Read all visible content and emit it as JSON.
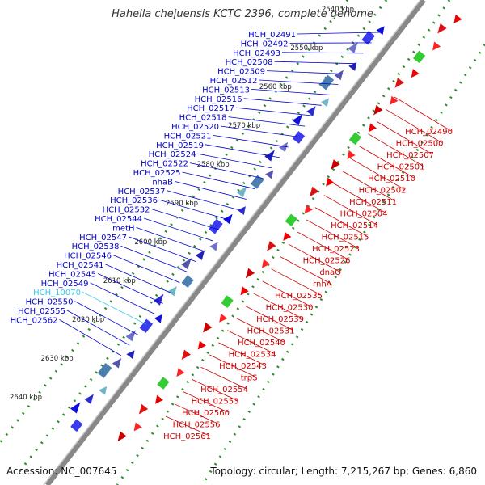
{
  "title": "Hahella chejuensis KCTC 2396, complete genome",
  "accession_label": "Accession: NC_007645",
  "topology_line": "Topology: circular; Length: 7,215,267 bp; Genes: 6,860",
  "kbp_labels": [
    "2540 kbp",
    "2550 kbp",
    "2560 kbp",
    "2570 kbp",
    "2580 kbp",
    "2590 kbp",
    "2600 kbp",
    "2610 kbp",
    "2620 kbp",
    "2630 kbp",
    "2640 kbp"
  ],
  "left_labels": [
    "HCH_02491",
    "HCH_02492",
    "HCH_02493",
    "HCH_02508",
    "HCH_02509",
    "HCH_02512",
    "HCH_02513",
    "HCH_02516",
    "HCH_02517",
    "HCH_02518",
    "HCH_02520",
    "HCH_02521",
    "HCH_02519",
    "HCH_02524",
    "HCH_02522",
    "HCH_02525",
    "nhaB",
    "HCH_02537",
    "HCH_02536",
    "HCH_02532",
    "HCH_02544",
    "metH",
    "HCH_02547",
    "HCH_02538",
    "HCH_02546",
    "HCH_02541",
    "HCH_02545",
    "HCH_02549",
    "HCH_10070",
    "HCH_02550",
    "HCH_02555",
    "HCH_02562"
  ],
  "right_labels": [
    "HCH_02490",
    "HCH_02500",
    "HCH_02507",
    "HCH_02501",
    "HCH_02510",
    "HCH_02502",
    "HCH_02511",
    "HCH_02504",
    "HCH_02514",
    "HCH_02515",
    "HCH_02523",
    "HCH_02526",
    "dnaQ",
    "rnhA",
    "HCH_02535",
    "HCH_02530",
    "HCH_02539",
    "HCH_02531",
    "HCH_02540",
    "HCH_02534",
    "HCH_02543",
    "trpS",
    "HCH_02554",
    "HCH_02553",
    "HCH_02560",
    "HCH_02556",
    "HCH_02561"
  ],
  "colors": {
    "left_text": "#0000cc",
    "right_text": "#cc0000",
    "highlight_text": "#33ccee",
    "backbone": "#888888",
    "dots": "#2e8b2e"
  }
}
